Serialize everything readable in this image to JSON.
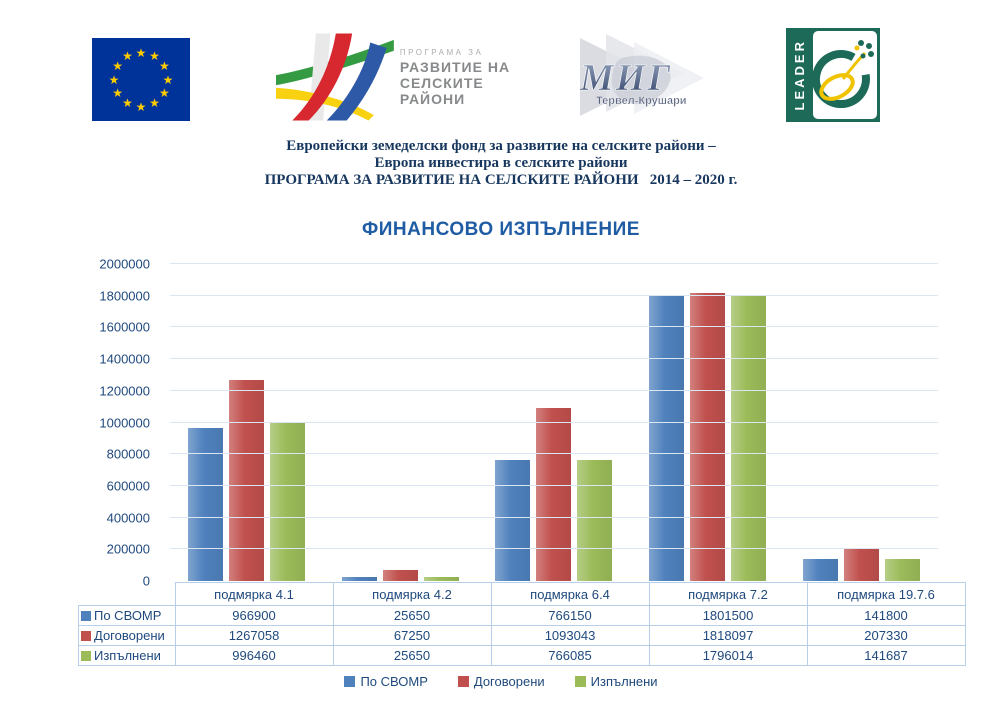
{
  "logos": {
    "prsr": {
      "line1": "ПРОГРАМА ЗА",
      "line2": "РАЗВИТИЕ НА",
      "line3": "СЕЛСКИТЕ РАЙОНИ"
    },
    "mig": {
      "title": "МИГ",
      "subtitle": "Тервел-Крушари"
    },
    "leader": {
      "label": "LEADER"
    }
  },
  "header": {
    "line1": "Европейски земеделски фонд за развитие на селските райони –",
    "line2": "Европа инвестира в селските райони",
    "line3": "ПРОГРАМА ЗА РАЗВИТИЕ НА СЕЛСКИТЕ РАЙОНИ   2014 – 2020 г."
  },
  "chart_data": {
    "type": "bar",
    "title": "ФИНАНСОВО ИЗПЪЛНЕНИЕ",
    "categories": [
      "подмярка 4.1",
      "подмярка 4.2",
      "подмярка 6.4",
      "подмярка 7.2",
      "подмярка 19.7.6"
    ],
    "series": [
      {
        "name": "По СВОМР",
        "color": "#4F81BD",
        "values": [
          966900,
          25650,
          766150,
          1801500,
          141800
        ]
      },
      {
        "name": "Договорени",
        "color": "#C0504D",
        "values": [
          1267058,
          67250,
          1093043,
          1818097,
          207330
        ]
      },
      {
        "name": "Изпълнени",
        "color": "#9BBB59",
        "values": [
          996460,
          25650,
          766085,
          1796014,
          141687
        ]
      }
    ],
    "xlabel": "",
    "ylabel": "",
    "ylim": [
      0,
      2000000
    ],
    "ytick_step": 200000,
    "grid": true,
    "legend_position": "bottom",
    "data_table": true,
    "colors": {
      "axis_text": "#1F497D",
      "title_text": "#1F5CA4",
      "gridline": "#DCE6F2",
      "table_border": "#B8CFEA"
    }
  }
}
